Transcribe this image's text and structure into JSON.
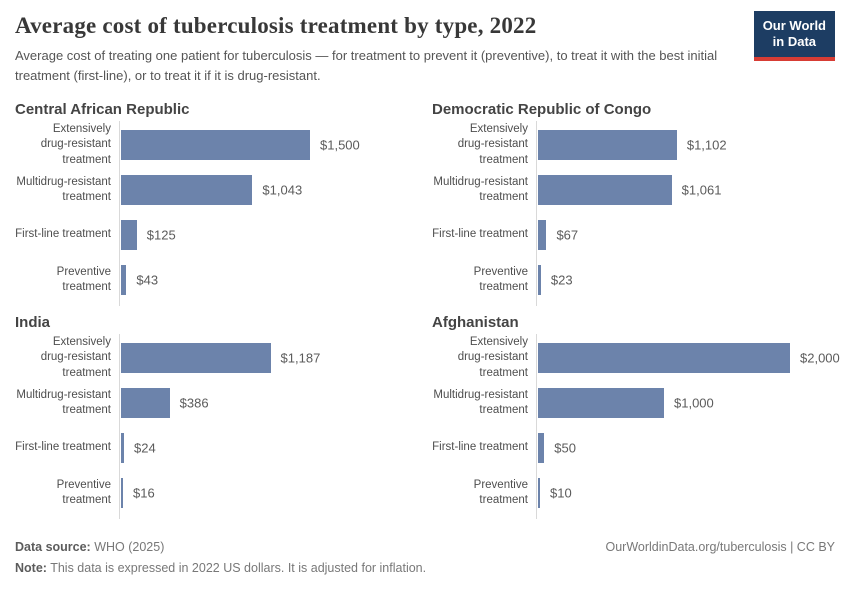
{
  "header": {
    "title": "Average cost of tuberculosis treatment by type, 2022",
    "subtitle": "Average cost of treating one patient for tuberculosis — for treatment to prevent it (preventive), to treat it with the best initial treatment (first-line), or to treat it if it is drug-resistant.",
    "logo": {
      "line1": "Our World",
      "line2": "in Data",
      "bg_color": "#1d3d63",
      "accent_color": "#d73c34"
    }
  },
  "chart_data": {
    "type": "bar",
    "orientation": "horizontal",
    "unit": "US dollars",
    "xlim": [
      0,
      2000
    ],
    "grid": false,
    "legend": "none",
    "bar_color": "#6c83ab",
    "axis_color": "#d9d9d9",
    "categories": [
      "Extensively\ndrug-resistant\ntreatment",
      "Multidrug-resistant\ntreatment",
      "First-line treatment",
      "Preventive\ntreatment"
    ],
    "panels": [
      {
        "title": "Central African Republic",
        "values": [
          1500,
          1043,
          125,
          43
        ],
        "labels": [
          "$1,500",
          "$1,043",
          "$125",
          "$43"
        ]
      },
      {
        "title": "Democratic Republic of Congo",
        "values": [
          1102,
          1061,
          67,
          23
        ],
        "labels": [
          "$1,102",
          "$1,061",
          "$67",
          "$23"
        ]
      },
      {
        "title": "India",
        "values": [
          1187,
          386,
          24,
          16
        ],
        "labels": [
          "$1,187",
          "$386",
          "$24",
          "$16"
        ]
      },
      {
        "title": "Afghanistan",
        "values": [
          2000,
          1000,
          50,
          10
        ],
        "labels": [
          "$2,000",
          "$1,000",
          "$50",
          "$10"
        ]
      }
    ]
  },
  "footer": {
    "datasource_label": "Data source:",
    "datasource_value": " WHO (2025)",
    "note_label": "Note:",
    "note_value": " This data is expressed in 2022 US dollars. It is adjusted for inflation.",
    "rights": "OurWorldinData.org/tuberculosis | CC BY"
  }
}
